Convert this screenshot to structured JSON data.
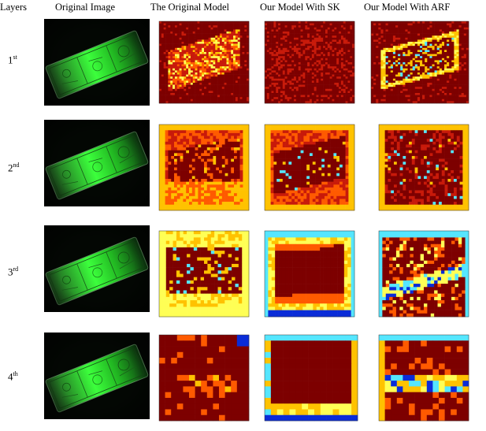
{
  "headers": {
    "layers": "Layers",
    "original_image": "Original Image",
    "original_model": "The Original Model",
    "model_sk": "Our Model With SK",
    "model_arf": "Our Model With ARF"
  },
  "rows": [
    {
      "num": "1",
      "sup": "st"
    },
    {
      "num": "2",
      "sup": "nd"
    },
    {
      "num": "3",
      "sup": "rd"
    },
    {
      "num": "4",
      "sup": "th"
    }
  ],
  "colors": {
    "background": "#7d0000",
    "mid": "#c81a0a",
    "hot": "#ff5a00",
    "warm": "#ffc200",
    "pale": "#ffff55",
    "cyan": "#55e6ff",
    "blue": "#0a2cd8",
    "green_glow": "#28ff32"
  }
}
